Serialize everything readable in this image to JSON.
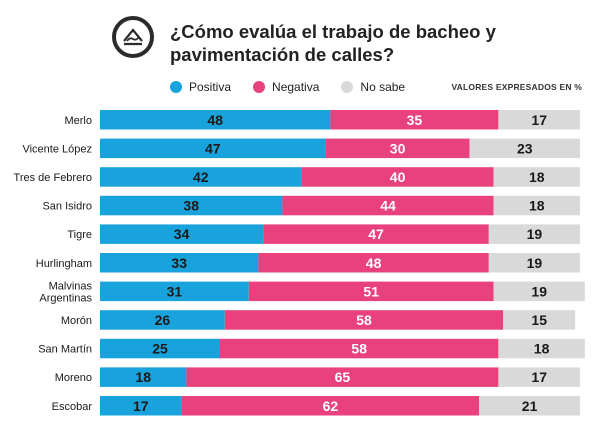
{
  "title": "¿Cómo evalúa el trabajo de bacheo y pavimentación de calles?",
  "units_note": "VALORES EXPRESADOS EN %",
  "legend": [
    {
      "label": "Positiva",
      "color": "#19a3dc"
    },
    {
      "label": "Negativa",
      "color": "#e8417e"
    },
    {
      "label": "No sabe",
      "color": "#d9d9d9"
    }
  ],
  "chart_data": {
    "type": "bar",
    "stacked": true,
    "orientation": "horizontal",
    "categories": [
      "Merlo",
      "Vicente López",
      "Tres de Febrero",
      "San Isidro",
      "Tigre",
      "Hurlingham",
      "Malvinas Argentinas",
      "Morón",
      "San Martín",
      "Moreno",
      "Escobar"
    ],
    "category_lines": [
      [
        "Merlo"
      ],
      [
        "Vicente López"
      ],
      [
        "Tres de Febrero"
      ],
      [
        "San Isidro"
      ],
      [
        "Tigre"
      ],
      [
        "Hurlingham"
      ],
      [
        "Malvinas",
        "Argentinas"
      ],
      [
        "Morón"
      ],
      [
        "San Martín"
      ],
      [
        "Moreno"
      ],
      [
        "Escobar"
      ]
    ],
    "series": [
      {
        "name": "Positiva",
        "color": "#19a3dc",
        "values": [
          48,
          47,
          42,
          38,
          34,
          33,
          31,
          26,
          25,
          18,
          17
        ]
      },
      {
        "name": "Negativa",
        "color": "#e8417e",
        "values": [
          35,
          30,
          40,
          44,
          47,
          48,
          51,
          58,
          58,
          65,
          62
        ]
      },
      {
        "name": "No sabe",
        "color": "#d9d9d9",
        "values": [
          17,
          23,
          18,
          18,
          19,
          19,
          19,
          15,
          18,
          17,
          21
        ]
      }
    ],
    "xlim": [
      0,
      100
    ],
    "label_colors": [
      "#1a1a1a",
      "#ffffff",
      "#1a1a1a"
    ]
  }
}
